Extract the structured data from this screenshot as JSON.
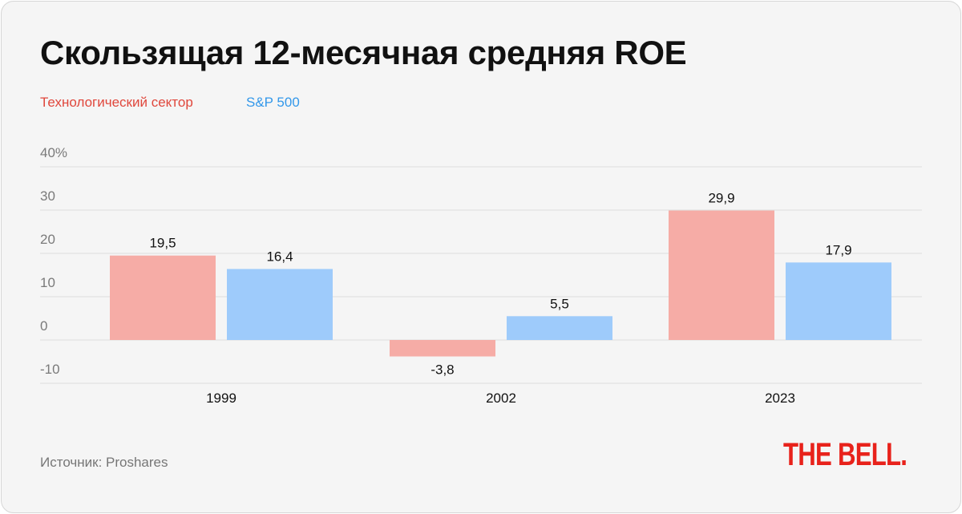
{
  "title": "Скользящая 12-месячная средняя ROE",
  "source": "Источник: Proshares",
  "logo": "THE BELL.",
  "colors": {
    "background": "#f5f5f5",
    "grid": "#dddddd",
    "tech": "#f6aca6",
    "sp500": "#9ecbfb",
    "tech_legend": "#e0473c",
    "sp500_legend": "#3398ea",
    "logo": "#e8221b"
  },
  "chart_data": {
    "type": "bar",
    "categories": [
      "1999",
      "2002",
      "2023"
    ],
    "series": [
      {
        "name": "Технологический сектор",
        "values": [
          19.5,
          -3.8,
          29.9
        ],
        "labels": [
          "19,5",
          "-3,8",
          "29,9"
        ]
      },
      {
        "name": "S&P 500",
        "values": [
          16.4,
          5.5,
          17.9
        ],
        "labels": [
          "16,4",
          "5,5",
          "17,9"
        ]
      }
    ],
    "y_ticks": [
      -10,
      0,
      10,
      20,
      30,
      40
    ],
    "y_tick_labels": [
      "-10",
      "0",
      "10",
      "20",
      "30",
      "40%"
    ],
    "ylim": [
      -10,
      40
    ],
    "grid": true,
    "legend_position": "top-left",
    "title": "Скользящая 12-месячная средняя ROE",
    "xlabel": "",
    "ylabel": ""
  }
}
